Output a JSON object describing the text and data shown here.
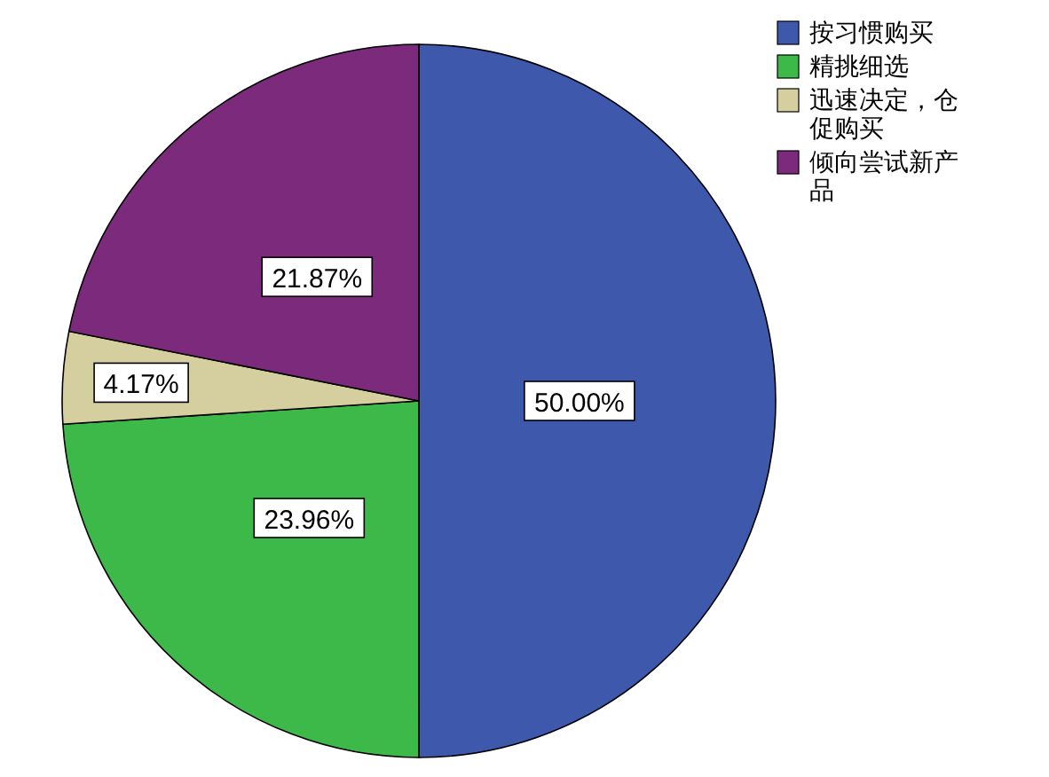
{
  "chart_data": {
    "type": "pie",
    "categories": [
      "按习惯购买",
      "精挑细选",
      "迅速决定，仓促购买",
      "倾向尝试新产品"
    ],
    "values": [
      50.0,
      23.96,
      4.17,
      21.87
    ],
    "colors": [
      "#3e58ac",
      "#3db94a",
      "#d5cf9f",
      "#7c2a7c"
    ],
    "value_labels": [
      "50.00%",
      "23.96%",
      "4.17%",
      "21.87%"
    ],
    "legend": "top right"
  }
}
